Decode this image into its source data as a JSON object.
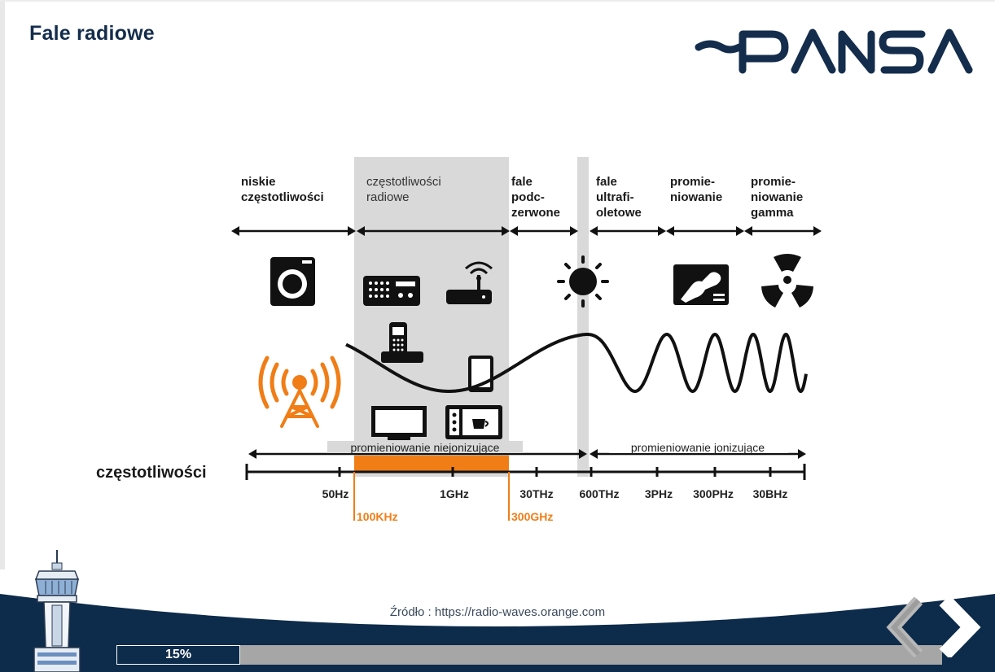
{
  "slide": {
    "title": "Fale radiowe",
    "source": "Źródło : https://radio-waves.orange.com"
  },
  "logo": {
    "text": "PANSA",
    "color": "#142d4c"
  },
  "categories": [
    {
      "lines": [
        "niskie",
        "częstotliwości"
      ]
    },
    {
      "lines": [
        "częstotliwości",
        "radiowe"
      ]
    },
    {
      "lines": [
        "fale",
        "podc-",
        "zerwone"
      ]
    },
    {
      "lines": [
        "fale",
        "ultrafi-",
        "oletowe"
      ]
    },
    {
      "lines": [
        "promie-",
        "niowanie"
      ]
    },
    {
      "lines": [
        "promie-",
        "niowanie",
        "gamma"
      ]
    }
  ],
  "icons": [
    "washing-machine-icon",
    "radio-icon",
    "router-icon",
    "sun-icon",
    "xray-icon",
    "radiation-icon",
    "cordless-phone-icon",
    "tablet-icon",
    "tv-icon",
    "microwave-icon",
    "antenna-icon"
  ],
  "ranges": {
    "non_ionizing": "promieniowanie niejonizujące",
    "ionizing": "promieniowanie jonizujące"
  },
  "axis": {
    "label": "częstotliwości",
    "ticks": [
      "50Hz",
      "1GHz",
      "30THz",
      "600THz",
      "3PHz",
      "300PHz",
      "30BHz"
    ],
    "highlight": [
      "100KHz",
      "300GHz"
    ]
  },
  "progress": {
    "value": 15,
    "label": "15%"
  },
  "colors": {
    "navy": "#0d2b4a",
    "orange": "#f07d16",
    "band_gray": "#d9d9d9",
    "track_gray": "#a6a6a6"
  }
}
